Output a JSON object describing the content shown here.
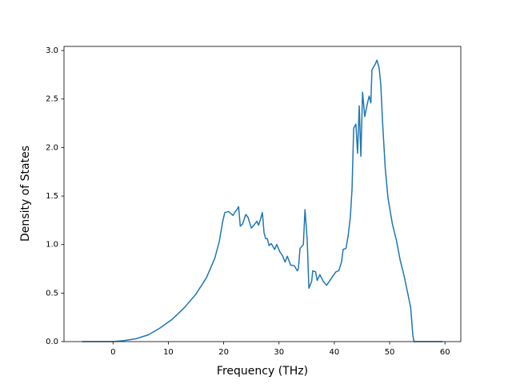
{
  "chart_data": {
    "type": "line",
    "x_label": "Frequency (THz)",
    "y_label": "Density of States",
    "x": [
      -5.6,
      0,
      2,
      4.2,
      6.4,
      8.5,
      10.7,
      12.9,
      15,
      16.9,
      18.4,
      19.2,
      19.8,
      20.2,
      20.9,
      21.7,
      22.1,
      22.4,
      22.7,
      23.0,
      23.4,
      24.0,
      24.4,
      25.0,
      25.6,
      26.0,
      26.3,
      26.6,
      27.0,
      27.3,
      27.6,
      27.9,
      28.2,
      28.6,
      29.2,
      29.6,
      30.2,
      30.6,
      31.1,
      31.5,
      32.1,
      32.8,
      33.3,
      33.5,
      33.8,
      34.4,
      34.7,
      35.1,
      35.4,
      35.9,
      36.1,
      36.6,
      36.9,
      37.4,
      38.0,
      38.6,
      39.2,
      39.8,
      40.3,
      40.8,
      41.3,
      41.6,
      42.1,
      42.5,
      42.9,
      43.2,
      43.5,
      43.9,
      44.2,
      44.5,
      44.8,
      45.1,
      45.5,
      46.0,
      46.3,
      46.6,
      46.8,
      47.4,
      47.7,
      48.1,
      48.4,
      48.7,
      49.2,
      49.7,
      50.5,
      51.2,
      51.9,
      52.6,
      53.3,
      53.8,
      54.2,
      54.4,
      59.6
    ],
    "series": [
      {
        "color": "#1f77b4",
        "values": [
          0,
          0,
          0.01,
          0.03,
          0.07,
          0.14,
          0.23,
          0.35,
          0.49,
          0.66,
          0.86,
          1.03,
          1.23,
          1.33,
          1.34,
          1.3,
          1.34,
          1.36,
          1.39,
          1.19,
          1.21,
          1.31,
          1.28,
          1.17,
          1.21,
          1.24,
          1.2,
          1.25,
          1.33,
          1.12,
          1.06,
          1.06,
          0.99,
          1.01,
          0.95,
          1.0,
          0.92,
          0.89,
          0.82,
          0.88,
          0.79,
          0.78,
          0.73,
          0.75,
          0.96,
          1.0,
          1.36,
          1.05,
          0.55,
          0.62,
          0.73,
          0.72,
          0.63,
          0.69,
          0.62,
          0.58,
          0.63,
          0.68,
          0.72,
          0.73,
          0.82,
          0.95,
          0.96,
          1.09,
          1.29,
          1.57,
          2.2,
          2.24,
          1.94,
          2.43,
          1.91,
          2.57,
          2.32,
          2.46,
          2.53,
          2.46,
          2.8,
          2.86,
          2.9,
          2.82,
          2.65,
          2.28,
          1.79,
          1.48,
          1.21,
          1.05,
          0.84,
          0.68,
          0.49,
          0.35,
          0.06,
          0,
          0
        ]
      }
    ],
    "xlim": [
      -8.86,
      62.86
    ],
    "xticks": [
      0,
      10,
      20,
      30,
      40,
      50,
      60
    ],
    "ylim": [
      0,
      3.042
    ],
    "yticks": [
      {
        "value": 0,
        "label": "0.0"
      },
      {
        "value": 0.5,
        "label": "0.5"
      },
      {
        "value": 1,
        "label": "1.0"
      },
      {
        "value": 1.5,
        "label": "1.5"
      },
      {
        "value": 2,
        "label": "2.0"
      },
      {
        "value": 2.5,
        "label": "2.5"
      },
      {
        "value": 3,
        "label": "3.0"
      }
    ]
  }
}
